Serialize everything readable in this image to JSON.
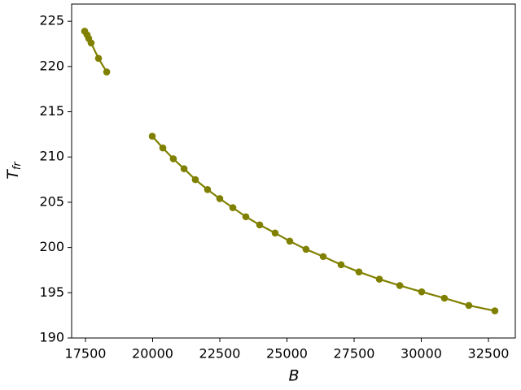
{
  "chart_data": {
    "type": "line",
    "xlabel": "B",
    "ylabel": {
      "text": "T",
      "subscript": "fr"
    },
    "x": [
      17470,
      17560,
      17620,
      17710,
      17985,
      18290,
      null,
      19985,
      20380,
      20770,
      21170,
      21590,
      22045,
      22500,
      22985,
      23470,
      23985,
      24560,
      25105,
      25710,
      26350,
      27015,
      27680,
      28440,
      29200,
      30015,
      30860,
      31770,
      32740
    ],
    "series": [
      {
        "color": "#808000",
        "values": [
          223.9,
          223.5,
          223.1,
          222.6,
          220.9,
          219.4,
          null,
          212.3,
          211.0,
          209.8,
          208.7,
          207.5,
          206.4,
          205.4,
          204.4,
          203.4,
          202.5,
          201.6,
          200.7,
          199.8,
          199.0,
          198.1,
          197.3,
          196.5,
          195.8,
          195.1,
          194.4,
          193.6,
          193.0
        ]
      }
    ],
    "xlim": [
      16985,
      33500
    ],
    "ylim": [
      190,
      226.9
    ],
    "xticks": [
      17500,
      20000,
      22500,
      25000,
      27500,
      30000,
      32500
    ],
    "yticks": [
      190,
      195,
      200,
      205,
      210,
      215,
      220,
      225
    ],
    "grid": false
  }
}
